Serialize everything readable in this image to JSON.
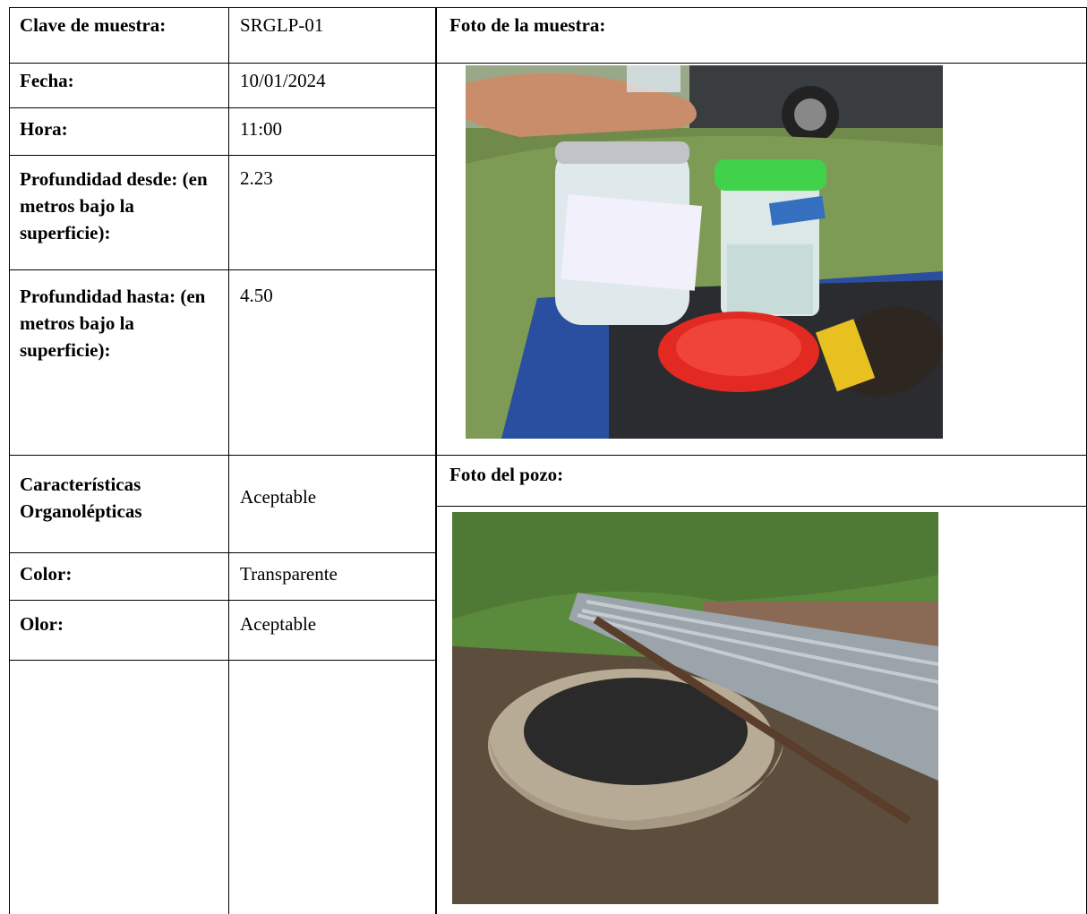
{
  "rows": [
    {
      "label": "Clave de muestra:",
      "value": "SRGLP-01"
    },
    {
      "label": "Fecha:",
      "value": "10/01/2024"
    },
    {
      "label": "Hora:",
      "value": "11:00"
    },
    {
      "label": "Profundidad desde: (en metros bajo la superficie):",
      "value": "2.23"
    },
    {
      "label": "Profundidad hasta: (en metros bajo la superficie):",
      "value": "4.50"
    },
    {
      "label": "Características Organolépticas",
      "value": "Aceptable"
    },
    {
      "label": "Color:",
      "value": "Transparente"
    },
    {
      "label": "Olor:",
      "value": "Aceptable"
    }
  ],
  "photos": [
    {
      "title": "Foto de la muestra:"
    },
    {
      "title": "Foto del pozo:"
    }
  ]
}
